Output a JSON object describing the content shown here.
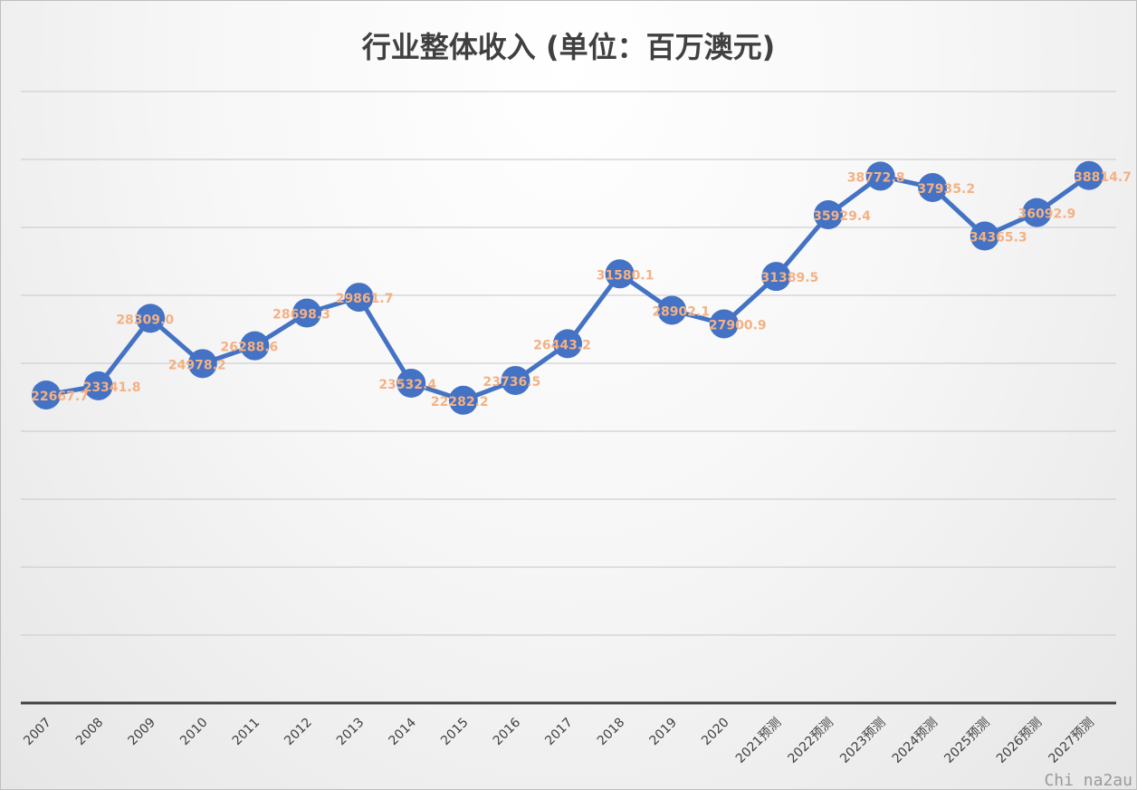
{
  "chart_data": {
    "type": "line",
    "title": "行业整体收入 (单位：百万澳元)",
    "categories": [
      "2007",
      "2008",
      "2009",
      "2010",
      "2011",
      "2012",
      "2013",
      "2014",
      "2015",
      "2016",
      "2017",
      "2018",
      "2019",
      "2020",
      "2021预测",
      "2022预测",
      "2023预测",
      "2024预测",
      "2025预测",
      "2026预测",
      "2027预测"
    ],
    "series": [
      {
        "values": [
          22667.7,
          23341.8,
          28309.0,
          24978.2,
          26288.6,
          28698.3,
          29861.7,
          23532.4,
          22282.2,
          23736.5,
          26443.2,
          31580.1,
          28902.1,
          27900.9,
          31389.5,
          35929.4,
          38772.8,
          37935.2,
          34365.3,
          36092.9,
          38814.7
        ],
        "labels": [
          "22667.7",
          "23341.8",
          "28309.0",
          "24978.2",
          "26288.6",
          "28698.3",
          "29861.7",
          "23532.4",
          "22282.2",
          "23736.5",
          "26443.2",
          "31580.1",
          "28902.1",
          "27900.9",
          "31389.5",
          "35929.4",
          "38772.8",
          "37935.2",
          "34365.3",
          "36092.9",
          "38814.7"
        ],
        "color": "#4472c4",
        "label_color": "#f4b183"
      }
    ],
    "ylim": [
      0,
      45000
    ],
    "y_axis_labels_visible": false,
    "grid": true,
    "legend": "none",
    "grid_color": "#d0d0d0",
    "axis_color": "#404040"
  },
  "watermark": "Chi na2au"
}
